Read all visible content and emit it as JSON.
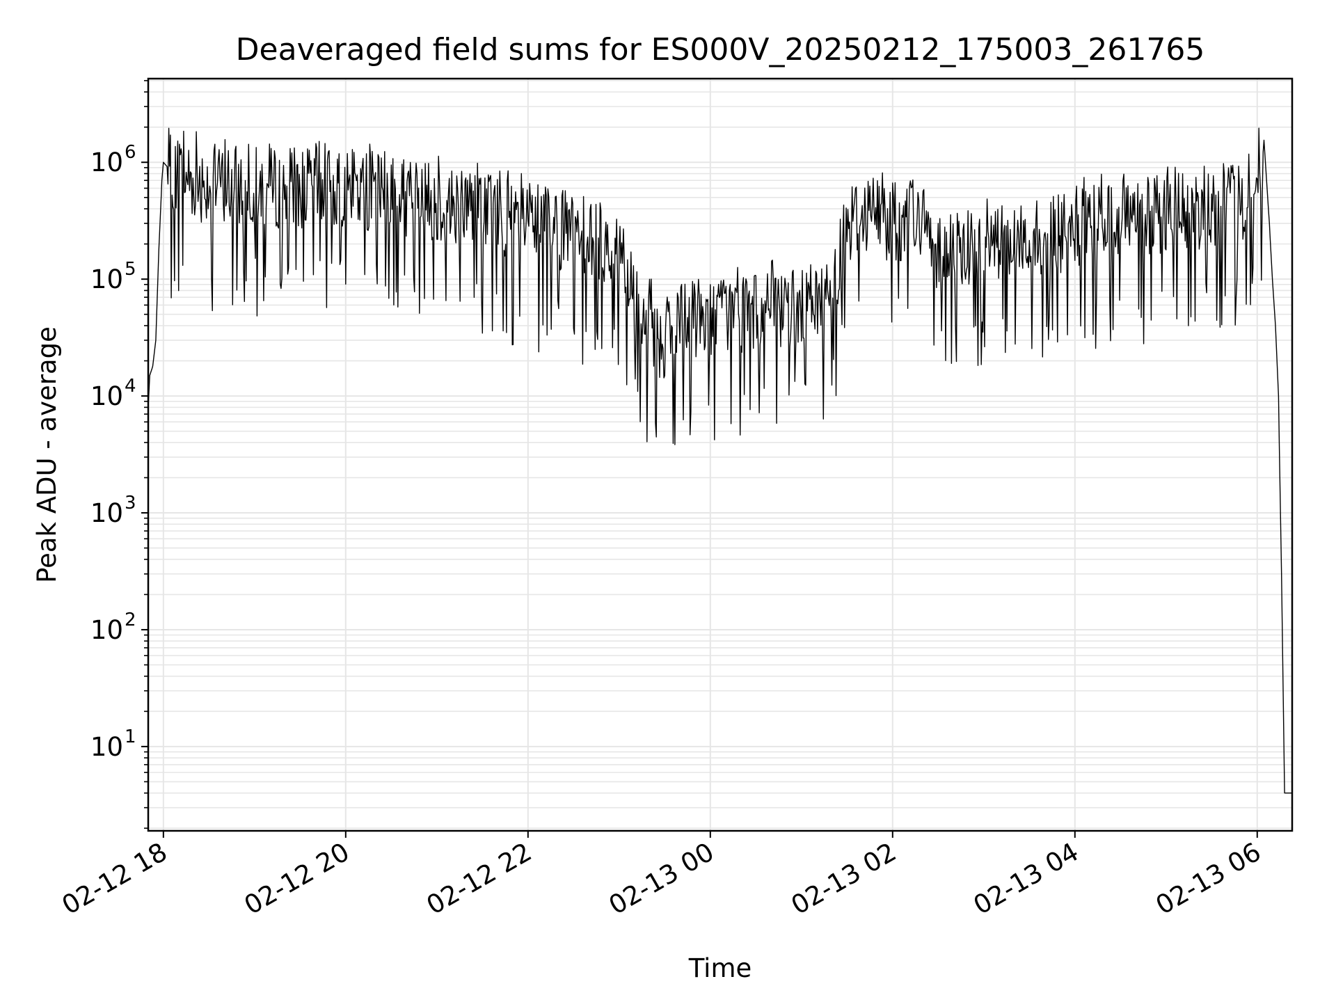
{
  "chart_data": {
    "type": "line",
    "title": "Deaveraged field sums for ES000V_20250212_175003_261765",
    "xlabel": "Time",
    "ylabel": "Peak ADU - average",
    "yscale": "log",
    "ylim": [
      1.9,
      5200000
    ],
    "xlim": [
      "2025-02-12 17:50",
      "2025-02-13 06:23"
    ],
    "grid": {
      "major": true,
      "minor_y": true
    },
    "line_color": "#000000",
    "x_ticks": [
      {
        "t": "2025-02-12 18:00",
        "label": "02-12 18"
      },
      {
        "t": "2025-02-12 20:00",
        "label": "02-12 20"
      },
      {
        "t": "2025-02-12 22:00",
        "label": "02-12 22"
      },
      {
        "t": "2025-02-13 00:00",
        "label": "02-13 00"
      },
      {
        "t": "2025-02-13 02:00",
        "label": "02-13 02"
      },
      {
        "t": "2025-02-13 04:00",
        "label": "02-13 04"
      },
      {
        "t": "2025-02-13 06:00",
        "label": "02-13 06"
      }
    ],
    "y_ticks": [
      {
        "value": 10,
        "base": "10",
        "exp": "1"
      },
      {
        "value": 100,
        "base": "10",
        "exp": "2"
      },
      {
        "value": 1000,
        "base": "10",
        "exp": "3"
      },
      {
        "value": 10000,
        "base": "10",
        "exp": "4"
      },
      {
        "value": 100000,
        "base": "10",
        "exp": "5"
      },
      {
        "value": 1000000,
        "base": "10",
        "exp": "6"
      }
    ],
    "series": [
      {
        "x": [
          "2025-02-12 17:50",
          "2025-02-12 17:51",
          "2025-02-12 17:53",
          "2025-02-12 17:55",
          "2025-02-12 17:57",
          "2025-02-12 17:59",
          "2025-02-12 18:00",
          "2025-02-12 18:03",
          "2025-02-12 18:10",
          "2025-02-12 18:20",
          "2025-02-12 18:40",
          "2025-02-12 19:00",
          "2025-02-12 19:30",
          "2025-02-12 20:00",
          "2025-02-12 20:30",
          "2025-02-12 21:00",
          "2025-02-12 21:30",
          "2025-02-12 22:00",
          "2025-02-12 22:30",
          "2025-02-12 23:00",
          "2025-02-12 23:15",
          "2025-02-12 23:30",
          "2025-02-12 23:45",
          "2025-02-13 00:00",
          "2025-02-13 00:30",
          "2025-02-13 01:00",
          "2025-02-13 01:20",
          "2025-02-13 01:30",
          "2025-02-13 01:45",
          "2025-02-13 02:00",
          "2025-02-13 02:15",
          "2025-02-13 02:30",
          "2025-02-13 03:00",
          "2025-02-13 03:30",
          "2025-02-13 04:00",
          "2025-02-13 04:30",
          "2025-02-13 05:00",
          "2025-02-13 05:30",
          "2025-02-13 05:50",
          "2025-02-13 06:00",
          "2025-02-13 06:05",
          "2025-02-13 06:08",
          "2025-02-13 06:10",
          "2025-02-13 06:12",
          "2025-02-13 06:14",
          "2025-02-13 06:16",
          "2025-02-13 06:18",
          "2025-02-13 06:20",
          "2025-02-13 06:23"
        ],
        "y": [
          8000,
          15000,
          18000,
          30000,
          180000,
          700000,
          1000000,
          900000,
          800000,
          700000,
          650000,
          600000,
          600000,
          600000,
          550000,
          450000,
          400000,
          300000,
          250000,
          180000,
          40000,
          30000,
          45000,
          50000,
          50000,
          55000,
          80000,
          300000,
          400000,
          300000,
          350000,
          180000,
          200000,
          220000,
          250000,
          350000,
          350000,
          400000,
          450000,
          900000,
          1200000,
          300000,
          100000,
          40000,
          10000,
          300,
          4,
          4,
          4
        ]
      }
    ]
  }
}
